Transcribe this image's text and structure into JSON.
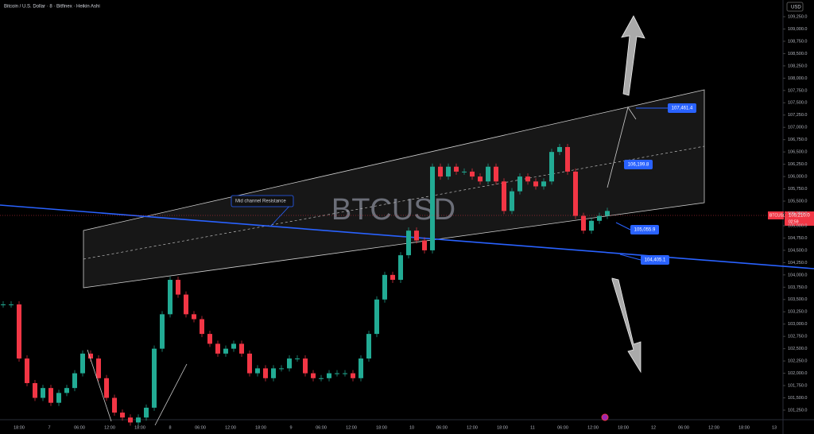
{
  "header": {
    "title": "Bitcoin / U.S. Dollar · 8 · Bitfinex · Heikin Ashi",
    "currency": "USD"
  },
  "watermark": "BTCUSD",
  "y_axis": {
    "ticks": [
      {
        "value": 109250,
        "label": "109,250.0"
      },
      {
        "value": 109000,
        "label": "109,000.0"
      },
      {
        "value": 108750,
        "label": "108,750.0"
      },
      {
        "value": 108500,
        "label": "108,500.0"
      },
      {
        "value": 108250,
        "label": "108,250.0"
      },
      {
        "value": 108000,
        "label": "108,000.0"
      },
      {
        "value": 107750,
        "label": "107,750.0"
      },
      {
        "value": 107500,
        "label": "107,500.0"
      },
      {
        "value": 107250,
        "label": "107,250.0"
      },
      {
        "value": 107000,
        "label": "107,000.0"
      },
      {
        "value": 106750,
        "label": "106,750.0"
      },
      {
        "value": 106500,
        "label": "106,500.0"
      },
      {
        "value": 106250,
        "label": "106,250.0"
      },
      {
        "value": 106000,
        "label": "106,000.0"
      },
      {
        "value": 105750,
        "label": "105,750.0"
      },
      {
        "value": 105500,
        "label": "105,500.0"
      },
      {
        "value": 105250,
        "label": "105,250.0"
      },
      {
        "value": 105000,
        "label": "105,000.0"
      },
      {
        "value": 104750,
        "label": "104,750.0"
      },
      {
        "value": 104500,
        "label": "104,500.0"
      },
      {
        "value": 104250,
        "label": "104,250.0"
      },
      {
        "value": 104000,
        "label": "104,000.0"
      },
      {
        "value": 103750,
        "label": "103,750.0"
      },
      {
        "value": 103500,
        "label": "103,500.0"
      },
      {
        "value": 103250,
        "label": "103,250.0"
      },
      {
        "value": 103000,
        "label": "103,000.0"
      },
      {
        "value": 102750,
        "label": "102,750.0"
      },
      {
        "value": 102500,
        "label": "102,500.0"
      },
      {
        "value": 102250,
        "label": "102,250.0"
      },
      {
        "value": 102000,
        "label": "102,000.0"
      },
      {
        "value": 101750,
        "label": "101,750.0"
      },
      {
        "value": 101500,
        "label": "101,500.0"
      },
      {
        "value": 101250,
        "label": "101,250.0"
      }
    ]
  },
  "x_axis": {
    "labels": [
      "18:00",
      "7",
      "06:00",
      "12:00",
      "18:00",
      "8",
      "06:00",
      "12:00",
      "18:00",
      "9",
      "06:00",
      "12:00",
      "18:00",
      "10",
      "06:00",
      "12:00",
      "18:00",
      "11",
      "06:00",
      "12:00",
      "18:00",
      "12",
      "06:00",
      "12:00",
      "18:00",
      "13"
    ]
  },
  "annotations": {
    "channel_label": "Mid channel Resistance",
    "price_boxes": [
      "107,461.4",
      "106,199.8",
      "105,055.9",
      "104,405.1"
    ]
  },
  "last_price": {
    "symbol": "BTCUSD",
    "price": "105,210.0",
    "countdown": "02:59"
  },
  "chart": {
    "type": "candlestick",
    "prices": [
      103400,
      103400,
      102300,
      101800,
      101500,
      101700,
      101400,
      101600,
      101700,
      102000,
      102400,
      102300,
      101900,
      101500,
      101200,
      101100,
      101000,
      101100,
      101300,
      102500,
      103200,
      103900,
      103600,
      103200,
      103100,
      102800,
      102600,
      102400,
      102500,
      102600,
      102400,
      102000,
      102100,
      101900,
      102100,
      102100,
      102300,
      102300,
      102000,
      101900,
      101900,
      102000,
      102000,
      102000,
      101900,
      102300,
      102800,
      103500,
      104000,
      103900,
      104400,
      104900,
      104700,
      104500,
      106200,
      106000,
      106200,
      106100,
      106100,
      106000,
      105900,
      106200,
      105900,
      105300,
      105700,
      106000,
      105900,
      105800,
      105900,
      106500,
      106600,
      106100,
      105200,
      104900,
      105100,
      105200,
      105300
    ]
  }
}
